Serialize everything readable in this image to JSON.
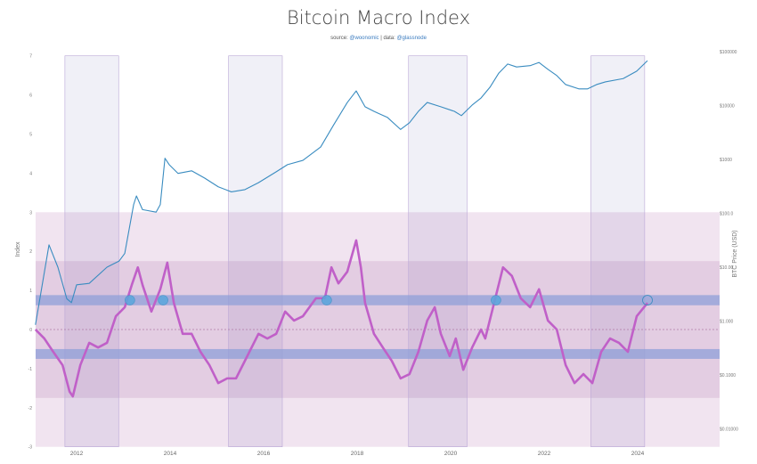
{
  "chart_data": {
    "type": "line",
    "title": "Bitcoin Macro Index",
    "subtitle": {
      "source_label": "source:",
      "source": "@woonomic",
      "sep": "|",
      "data_label": "data:",
      "data": "@glassnode"
    },
    "ylabel": "Index",
    "y2label": "BTC Price (USD)",
    "ylim": [
      -3,
      7
    ],
    "y_ticks": [
      7,
      6,
      5,
      4,
      3,
      2,
      1,
      0,
      -1,
      -2,
      -3
    ],
    "y_tick_labels": [
      "7",
      "6",
      "5",
      "4",
      "3",
      "2",
      "1",
      "0",
      "-1",
      "-2",
      "-3"
    ],
    "y2_ticks": [
      100000,
      10000,
      1000,
      100,
      10,
      1,
      0.1,
      0.01
    ],
    "y2_tick_labels": [
      "$100000",
      "$10000",
      "$1000",
      "$100.0",
      "$10.00",
      "$1.000",
      "$0.1000",
      "$0.01000"
    ],
    "x_ticks": [
      2012,
      2014,
      2016,
      2018,
      2020,
      2022,
      2024
    ],
    "x_tick_labels": [
      "2012",
      "2014",
      "2016",
      "2018",
      "2020",
      "2022",
      "2024"
    ],
    "xlim": [
      2011.1,
      2025.7
    ],
    "index_zones": {
      "outer": [
        -3,
        3
      ],
      "inner": [
        -1.75,
        1.75
      ],
      "upper_band": [
        0.62,
        0.88
      ],
      "lower_band": [
        -0.75,
        -0.5
      ]
    },
    "shaded_periods": [
      [
        2011.75,
        2012.9
      ],
      [
        2015.25,
        2016.4
      ],
      [
        2019.1,
        2020.35
      ],
      [
        2023.0,
        2024.15
      ]
    ],
    "signal_markers": [
      {
        "year": 2013.14,
        "index": 0.75,
        "hollow": false
      },
      {
        "year": 2013.85,
        "index": 0.75,
        "hollow": false
      },
      {
        "year": 2017.35,
        "index": 0.75,
        "hollow": false
      },
      {
        "year": 2020.97,
        "index": 0.75,
        "hollow": false
      },
      {
        "year": 2024.21,
        "index": 0.75,
        "hollow": true
      }
    ],
    "series": [
      {
        "name": "BTC Price",
        "axis": "right",
        "color": "#3a8cc0",
        "x": [
          2011.12,
          2011.41,
          2011.6,
          2011.79,
          2011.89,
          2012.0,
          2012.27,
          2012.65,
          2012.91,
          2013.03,
          2013.22,
          2013.28,
          2013.41,
          2013.7,
          2013.79,
          2013.89,
          2013.98,
          2014.17,
          2014.46,
          2014.74,
          2015.03,
          2015.31,
          2015.6,
          2015.89,
          2016.27,
          2016.51,
          2016.84,
          2017.22,
          2017.5,
          2017.79,
          2017.98,
          2018.17,
          2018.36,
          2018.65,
          2018.93,
          2019.12,
          2019.31,
          2019.5,
          2019.79,
          2020.08,
          2020.23,
          2020.46,
          2020.65,
          2020.84,
          2021.03,
          2021.22,
          2021.41,
          2021.7,
          2021.89,
          2022.08,
          2022.27,
          2022.46,
          2022.74,
          2022.93,
          2023.12,
          2023.31,
          2023.69,
          2023.98,
          2024.21
        ],
        "values": [
          0.85,
          26,
          10,
          2.6,
          2.2,
          4.7,
          5,
          10,
          13,
          18,
          145,
          210,
          117,
          105,
          145,
          1050,
          800,
          550,
          615,
          450,
          310,
          250,
          275,
          370,
          590,
          800,
          960,
          1700,
          4400,
          11400,
          18700,
          9500,
          7800,
          6000,
          3600,
          4800,
          7800,
          11400,
          9500,
          7800,
          6500,
          10200,
          13800,
          21800,
          40000,
          59000,
          52000,
          55000,
          63000,
          47000,
          36000,
          24500,
          20400,
          20400,
          24500,
          27500,
          31600,
          43500,
          68000
        ]
      },
      {
        "name": "Macro Index",
        "axis": "left",
        "color": "#c060c8",
        "x": [
          2011.12,
          2011.31,
          2011.5,
          2011.7,
          2011.85,
          2011.92,
          2012.08,
          2012.27,
          2012.46,
          2012.65,
          2012.84,
          2013.03,
          2013.18,
          2013.31,
          2013.41,
          2013.6,
          2013.79,
          2013.94,
          2014.08,
          2014.27,
          2014.46,
          2014.65,
          2014.84,
          2015.03,
          2015.22,
          2015.41,
          2015.6,
          2015.89,
          2016.08,
          2016.27,
          2016.46,
          2016.65,
          2016.84,
          2017.12,
          2017.31,
          2017.45,
          2017.6,
          2017.79,
          2017.98,
          2018.08,
          2018.17,
          2018.36,
          2018.55,
          2018.74,
          2018.93,
          2019.12,
          2019.31,
          2019.5,
          2019.66,
          2019.79,
          2019.98,
          2020.11,
          2020.27,
          2020.46,
          2020.65,
          2020.74,
          2020.93,
          2021.12,
          2021.31,
          2021.5,
          2021.7,
          2021.89,
          2022.08,
          2022.27,
          2022.46,
          2022.65,
          2022.84,
          2023.03,
          2023.22,
          2023.41,
          2023.6,
          2023.79,
          2023.98,
          2024.21
        ],
        "values": [
          0,
          -0.23,
          -0.57,
          -0.91,
          -1.59,
          -1.71,
          -0.91,
          -0.34,
          -0.46,
          -0.34,
          0.34,
          0.57,
          1.14,
          1.59,
          1.14,
          0.46,
          1.03,
          1.71,
          0.68,
          -0.11,
          -0.11,
          -0.57,
          -0.91,
          -1.37,
          -1.25,
          -1.25,
          -0.8,
          -0.11,
          -0.23,
          -0.11,
          0.46,
          0.23,
          0.34,
          0.8,
          0.8,
          1.59,
          1.18,
          1.48,
          2.28,
          1.59,
          0.68,
          -0.11,
          -0.46,
          -0.8,
          -1.25,
          -1.14,
          -0.57,
          0.23,
          0.57,
          -0.11,
          -0.68,
          -0.23,
          -1.03,
          -0.46,
          0,
          -0.23,
          0.68,
          1.59,
          1.37,
          0.8,
          0.57,
          1.03,
          0.23,
          0,
          -0.91,
          -1.37,
          -1.14,
          -1.37,
          -0.57,
          -0.23,
          -0.34,
          -0.57,
          0.34,
          0.68
        ]
      }
    ]
  }
}
